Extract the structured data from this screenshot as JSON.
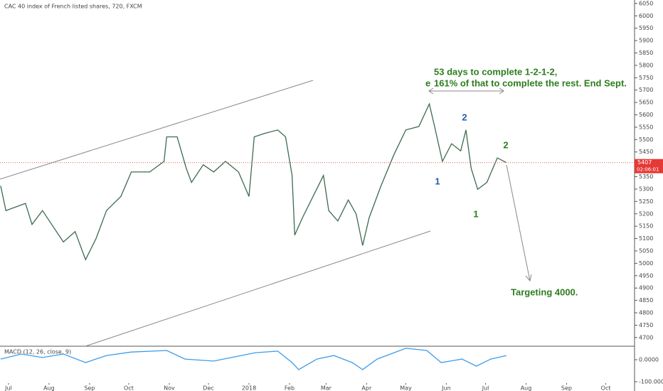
{
  "chart_data": [
    {
      "type": "line",
      "title": "CAC 40 index of French listed shares, 720, FXCM",
      "x": [
        -6,
        -2,
        13,
        18,
        26,
        42,
        51,
        59,
        67,
        75,
        86,
        94,
        108,
        119,
        121,
        129,
        136,
        140,
        149,
        157,
        166,
        176,
        184,
        188,
        196,
        206,
        212,
        217,
        219,
        225,
        233,
        241,
        245,
        252,
        260,
        266,
        271,
        276,
        285,
        295,
        304,
        314,
        322,
        326,
        332,
        339,
        346,
        350,
        354,
        359,
        366,
        374,
        381
      ],
      "series": [
        {
          "name": "Close",
          "color": "#3d6b4f",
          "values": [
            5313,
            5213,
            5242,
            5157,
            5213,
            5086,
            5128,
            5015,
            5100,
            5213,
            5270,
            5369,
            5369,
            5412,
            5511,
            5511,
            5384,
            5327,
            5398,
            5369,
            5412,
            5369,
            5270,
            5511,
            5525,
            5539,
            5511,
            5355,
            5114,
            5185,
            5270,
            5355,
            5213,
            5171,
            5256,
            5199,
            5072,
            5185,
            5313,
            5440,
            5539,
            5553,
            5644,
            5553,
            5412,
            5483,
            5454,
            5539,
            5384,
            5299,
            5327,
            5426,
            5407
          ]
        }
      ],
      "xlim": [
        -6.5,
        479
      ],
      "xticks": [
        {
          "value": 0,
          "label": "Jul"
        },
        {
          "value": 31,
          "label": "Aug"
        },
        {
          "value": 62,
          "label": "Sep"
        },
        {
          "value": 92,
          "label": "Oct"
        },
        {
          "value": 123,
          "label": "Nov"
        },
        {
          "value": 153,
          "label": "Dec"
        },
        {
          "value": 184,
          "label": "2018"
        },
        {
          "value": 215,
          "label": "Feb"
        },
        {
          "value": 243,
          "label": "Mar"
        },
        {
          "value": 274,
          "label": "Apr"
        },
        {
          "value": 304,
          "label": "May"
        },
        {
          "value": 335,
          "label": "Jun"
        },
        {
          "value": 365,
          "label": "Jul"
        },
        {
          "value": 396,
          "label": "Aug"
        },
        {
          "value": 427,
          "label": "Sep"
        },
        {
          "value": 457,
          "label": "Oct"
        }
      ],
      "ylim": [
        4665,
        6064
      ],
      "yticks": [
        4700,
        4750,
        4800,
        4850,
        4900,
        4950,
        5000,
        5050,
        5100,
        5150,
        5200,
        5250,
        5300,
        5350,
        5400,
        5450,
        5500,
        5550,
        5600,
        5650,
        5700,
        5750,
        5800,
        5850,
        5900,
        5950,
        6000,
        6050
      ],
      "current_price": 5407,
      "countdown": "02:06:01",
      "grid": false,
      "annotations": [
        {
          "text": "53 days to complete 1-2-1-2,",
          "color": "#2e7d1f"
        },
        {
          "text": "161% of that to complete the rest. End Sept.",
          "color": "#2e7d1f"
        },
        {
          "text": "e",
          "color": "#2e7d1f"
        },
        {
          "text": "2",
          "color": "#1f5fa8"
        },
        {
          "text": "1",
          "color": "#1f5fa8"
        },
        {
          "text": "2",
          "color": "#2e7d1f"
        },
        {
          "text": "1",
          "color": "#2e7d1f"
        },
        {
          "text": "Targeting 4000.",
          "color": "#2e7d1f"
        }
      ]
    },
    {
      "type": "line",
      "title": "MACD (12, 26, close, 9)",
      "x": [
        -6,
        10,
        26,
        42,
        59,
        75,
        94,
        121,
        135,
        157,
        173,
        189,
        206,
        217,
        222,
        236,
        249,
        263,
        271,
        282,
        304,
        320,
        331,
        347,
        358,
        369,
        381
      ],
      "series": [
        {
          "name": "MACD",
          "color": "#3d9be9",
          "values": [
            3,
            26,
            10,
            26,
            -13,
            19,
            35,
            42,
            3,
            -6,
            13,
            32,
            39,
            -13,
            -45,
            3,
            19,
            -13,
            -45,
            3,
            52,
            42,
            -13,
            3,
            -29,
            3,
            19
          ]
        }
      ],
      "xlim": [
        -6.5,
        479
      ],
      "ylim": [
        -139,
        55
      ],
      "yticks": [
        {
          "value": 0,
          "label": "0.0000"
        },
        {
          "value": -100,
          "label": "-100.0000"
        }
      ]
    }
  ]
}
